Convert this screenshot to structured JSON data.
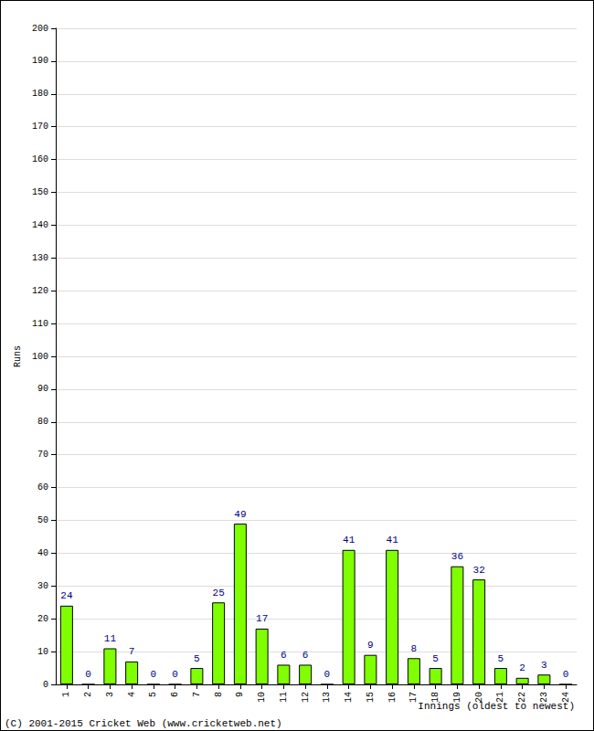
{
  "chart_data": {
    "type": "bar",
    "x_label": "Innings (oldest to newest)",
    "y_label": "Runs",
    "annotations": [
      "(C) 2001-2015 Cricket Web (www.cricketweb.net)"
    ],
    "categories": [
      "1",
      "2",
      "3",
      "4",
      "5",
      "6",
      "7",
      "8",
      "9",
      "10",
      "11",
      "12",
      "13",
      "14",
      "15",
      "16",
      "17",
      "18",
      "19",
      "20",
      "21",
      "22",
      "23",
      "24"
    ],
    "values": [
      24,
      0,
      11,
      7,
      0,
      0,
      5,
      25,
      49,
      17,
      6,
      6,
      0,
      41,
      9,
      41,
      8,
      5,
      36,
      32,
      5,
      2,
      3,
      0
    ],
    "color": "#80ff00",
    "ylim": [
      0,
      200
    ],
    "yticks": [
      0,
      10,
      20,
      30,
      40,
      50,
      60,
      70,
      80,
      90,
      100,
      110,
      120,
      130,
      140,
      150,
      160,
      170,
      180,
      190,
      200
    ],
    "grid": true,
    "data_labels": true
  }
}
